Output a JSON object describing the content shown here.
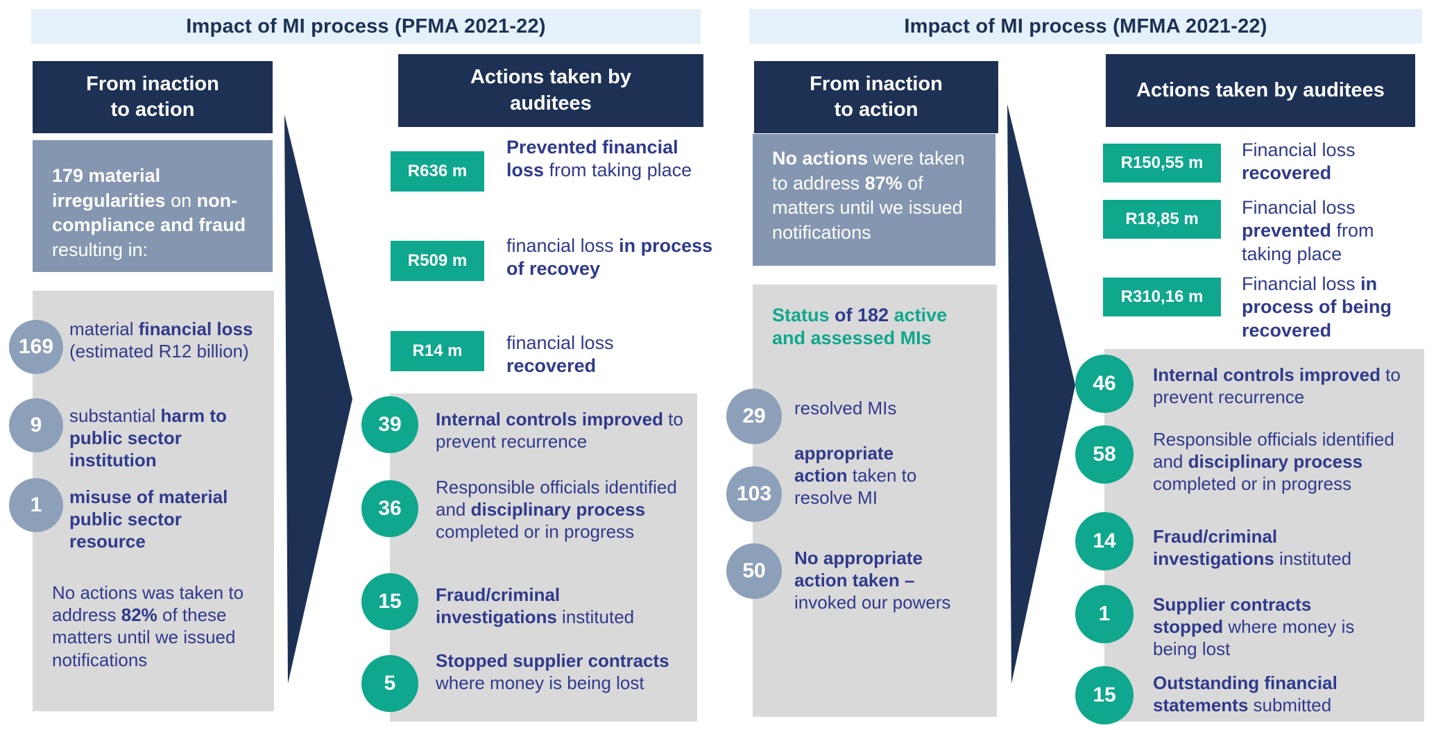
{
  "colors": {
    "navy": "#1d3154",
    "teal": "#0fa78d",
    "grayblue": "#8496b0",
    "circle_blue": "#8da0ba",
    "lightgray": "#d9d9d9",
    "band_bg": "#e4f1fb",
    "text": "#2f3a8c",
    "white": "#ffffff"
  },
  "panels": [
    {
      "id": "pfma",
      "title": "Impact of MI process (PFMA 2021-22)",
      "inaction_header_lines": [
        "From inaction",
        "to action"
      ],
      "actions_header_lines": [
        "Actions taken by",
        "auditees"
      ],
      "summary_segments": [
        {
          "t": "179 material irregularities",
          "b": true
        },
        {
          "t": " on ",
          "b": false
        },
        {
          "t": "non-compliance and fraud",
          "b": true
        },
        {
          "t": " resulting in:",
          "b": false
        }
      ],
      "impact_items": [
        {
          "value": "169",
          "segments": [
            {
              "t": "material ",
              "b": false
            },
            {
              "t": "financial loss",
              "b": true
            },
            {
              "t": " (estimated R12 billion)",
              "b": false
            }
          ]
        },
        {
          "value": "9",
          "segments": [
            {
              "t": "substantial ",
              "b": false
            },
            {
              "t": "harm to public sector institution",
              "b": true
            }
          ]
        },
        {
          "value": "1",
          "segments": [
            {
              "t": "misuse of material public sector resource",
              "b": true
            }
          ]
        }
      ],
      "footnote_segments": [
        {
          "t": "No actions was taken to address ",
          "b": false
        },
        {
          "t": "82%",
          "b": true
        },
        {
          "t": " of these matters until we issued notifications",
          "b": false
        }
      ],
      "amounts": [
        {
          "value": "R636 m",
          "segments": [
            {
              "t": "Prevented financial loss",
              "b": true
            },
            {
              "t": " from taking place",
              "b": false
            }
          ]
        },
        {
          "value": "R509 m",
          "segments": [
            {
              "t": "financial loss ",
              "b": false
            },
            {
              "t": "in process of recovey",
              "b": true
            }
          ]
        },
        {
          "value": "R14 m",
          "segments": [
            {
              "t": "financial loss ",
              "b": false
            },
            {
              "t": "recovered",
              "b": true
            }
          ]
        }
      ],
      "actions": [
        {
          "value": "39",
          "segments": [
            {
              "t": "Internal controls improved",
              "b": true
            },
            {
              "t": " to prevent recurrence",
              "b": false
            }
          ]
        },
        {
          "value": "36",
          "segments": [
            {
              "t": "Responsible officials identified and ",
              "b": false
            },
            {
              "t": "disciplinary process",
              "b": true
            },
            {
              "t": " completed or in progress",
              "b": false
            }
          ]
        },
        {
          "value": "15",
          "segments": [
            {
              "t": "Fraud/criminal investigations",
              "b": true
            },
            {
              "t": " instituted",
              "b": false
            }
          ]
        },
        {
          "value": "5",
          "segments": [
            {
              "t": "Stopped supplier contracts",
              "b": true
            },
            {
              "t": " where money is being lost",
              "b": false
            }
          ]
        }
      ]
    },
    {
      "id": "mfma",
      "title": "Impact of MI process (MFMA 2021-22)",
      "inaction_header_lines": [
        "From inaction",
        "to action"
      ],
      "actions_header_lines": [
        "Actions taken by auditees"
      ],
      "summary_segments": [
        {
          "t": "No actions",
          "b": true
        },
        {
          "t": " were taken to address ",
          "b": false
        },
        {
          "t": "87%",
          "b": true
        },
        {
          "t": " of matters until we issued notifications",
          "b": false
        }
      ],
      "status_heading_segments": [
        {
          "t": "Status ",
          "b": true,
          "c": "teal"
        },
        {
          "t": "of 182 ",
          "b": true,
          "c": "text"
        },
        {
          "t": "active and assessed MIs",
          "b": true,
          "c": "teal"
        }
      ],
      "status_items": [
        {
          "value": "29",
          "segments": [
            {
              "t": "resolved MIs",
              "b": false
            }
          ]
        },
        {
          "value": "103",
          "segments": [
            {
              "t": "appropriate action",
              "b": true
            },
            {
              "t": " taken to resolve MI",
              "b": false
            }
          ]
        },
        {
          "value": "50",
          "segments": [
            {
              "t": "No appropriate action taken –",
              "b": true
            },
            {
              "t": " invoked our powers",
              "b": false
            }
          ]
        }
      ],
      "amounts": [
        {
          "value": "R150,55 m",
          "segments": [
            {
              "t": "Financial loss ",
              "b": false
            },
            {
              "t": "recovered",
              "b": true
            }
          ]
        },
        {
          "value": "R18,85 m",
          "segments": [
            {
              "t": "Financial loss ",
              "b": false
            },
            {
              "t": "prevented",
              "b": true
            },
            {
              "t": " from taking place",
              "b": false
            }
          ]
        },
        {
          "value": "R310,16 m",
          "segments": [
            {
              "t": "Financial loss ",
              "b": false
            },
            {
              "t": "in process of being recovered",
              "b": true
            }
          ]
        }
      ],
      "actions": [
        {
          "value": "46",
          "segments": [
            {
              "t": "Internal controls improved",
              "b": true
            },
            {
              "t": " to prevent recurrence",
              "b": false
            }
          ]
        },
        {
          "value": "58",
          "segments": [
            {
              "t": "Responsible officials identified and ",
              "b": false
            },
            {
              "t": "disciplinary process",
              "b": true
            },
            {
              "t": " completed or in progress",
              "b": false
            }
          ]
        },
        {
          "value": "14",
          "segments": [
            {
              "t": "Fraud/criminal investigations",
              "b": true
            },
            {
              "t": " instituted",
              "b": false
            }
          ]
        },
        {
          "value": "1",
          "segments": [
            {
              "t": "Supplier contracts stopped",
              "b": true
            },
            {
              "t": " where money is being lost",
              "b": false
            }
          ]
        },
        {
          "value": "15",
          "segments": [
            {
              "t": "Outstanding financial statements",
              "b": true
            },
            {
              "t": " submitted",
              "b": false
            }
          ]
        }
      ]
    }
  ]
}
